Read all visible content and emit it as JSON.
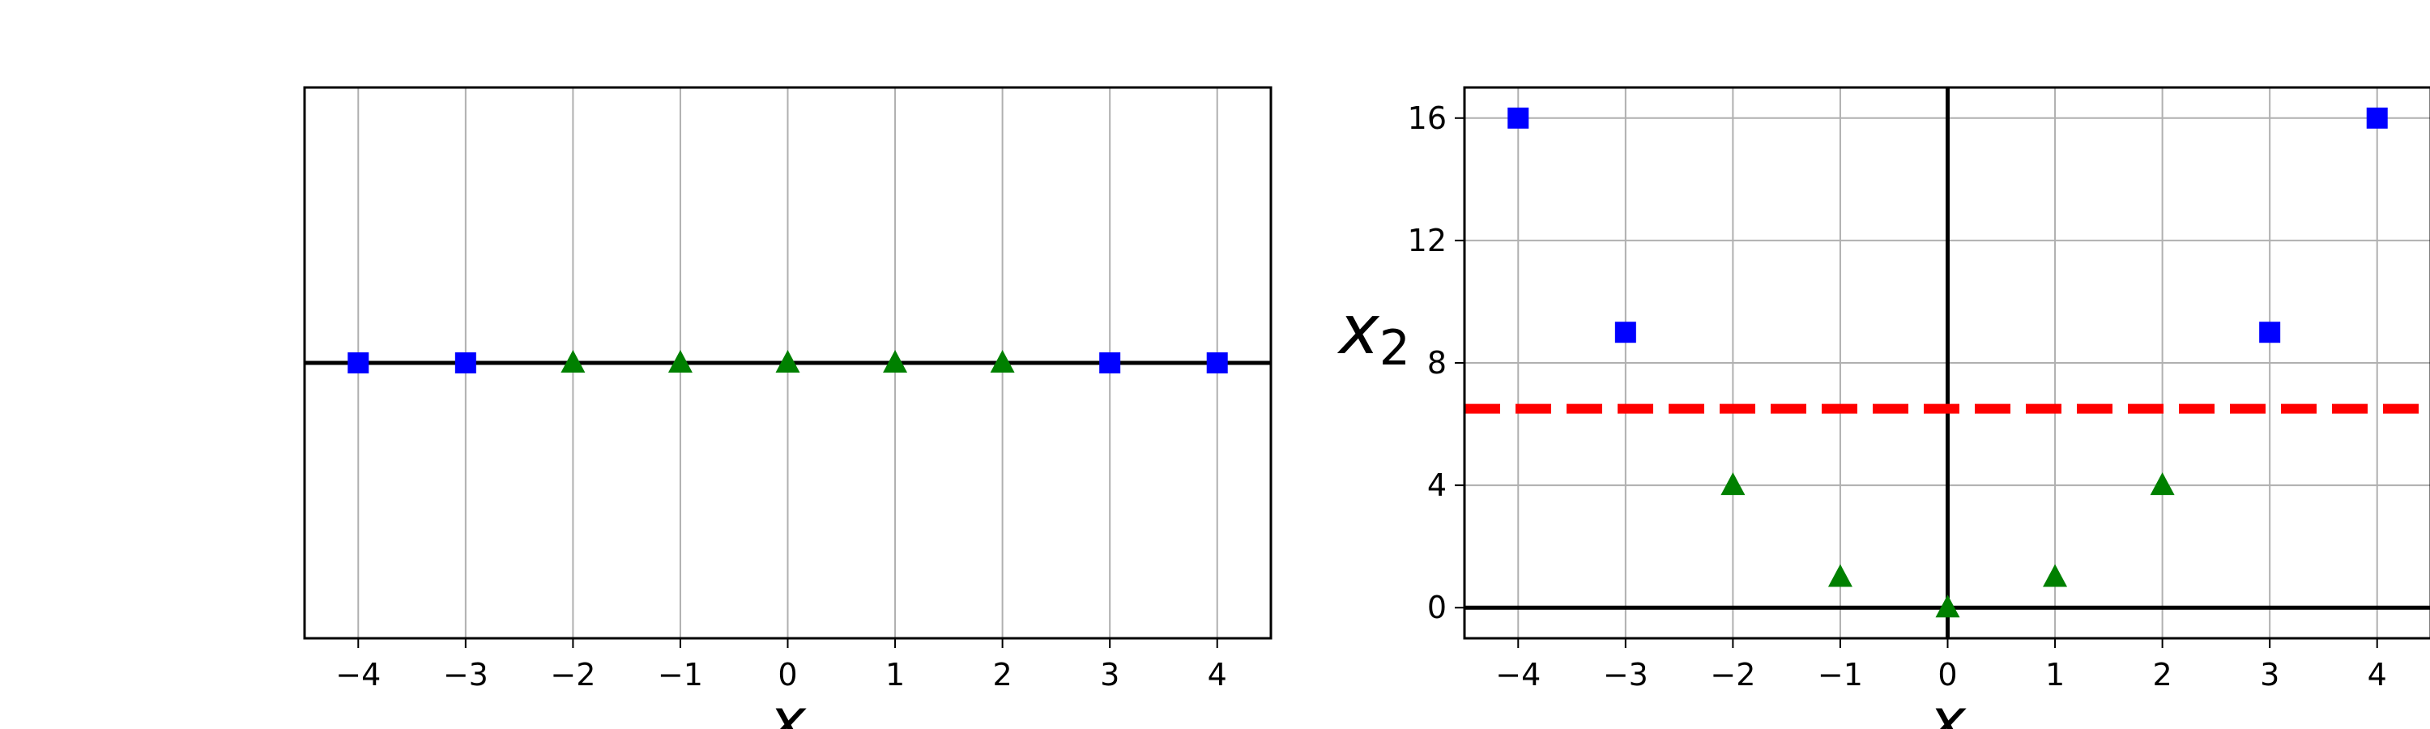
{
  "chart_data": [
    {
      "type": "scatter",
      "panel": "left",
      "xlabel": "x",
      "ylabel": "",
      "xlim": [
        -4.5,
        4.5
      ],
      "ylim": [
        -0.2,
        0.2
      ],
      "x_ticks": [
        "−4",
        "−3",
        "−2",
        "−1",
        "0",
        "1",
        "2",
        "3",
        "4"
      ],
      "y_ticks": [],
      "grid": true,
      "series": [
        {
          "marker": "square",
          "color": "#0000ff",
          "x": [
            -4,
            -3,
            3,
            4
          ],
          "y": [
            0,
            0,
            0,
            0
          ]
        },
        {
          "marker": "triangle",
          "color": "#008000",
          "x": [
            -2,
            -1,
            0,
            1,
            2
          ],
          "y": [
            0,
            0,
            0,
            0,
            0
          ]
        }
      ],
      "reference_lines": [
        {
          "orientation": "horizontal",
          "at": 0,
          "color": "#000000",
          "style": "solid"
        }
      ]
    },
    {
      "type": "scatter",
      "panel": "right",
      "xlabel": "x",
      "ylabel": "x2",
      "xlim": [
        -4.5,
        4.5
      ],
      "ylim": [
        -1,
        17
      ],
      "x_ticks": [
        "−4",
        "−3",
        "−2",
        "−1",
        "0",
        "1",
        "2",
        "3",
        "4"
      ],
      "y_ticks": [
        "0",
        "4",
        "8",
        "12",
        "16"
      ],
      "grid": true,
      "series": [
        {
          "marker": "square",
          "color": "#0000ff",
          "x": [
            -4,
            -3,
            3,
            4
          ],
          "y": [
            16,
            9,
            9,
            16
          ]
        },
        {
          "marker": "triangle",
          "color": "#008000",
          "x": [
            -2,
            -1,
            0,
            1,
            2
          ],
          "y": [
            4,
            1,
            0,
            1,
            4
          ]
        }
      ],
      "reference_lines": [
        {
          "orientation": "horizontal",
          "at": 0,
          "color": "#000000",
          "style": "solid"
        },
        {
          "orientation": "vertical",
          "at": 0,
          "color": "#000000",
          "style": "solid"
        },
        {
          "orientation": "horizontal",
          "at": 6.5,
          "color": "#ff0000",
          "style": "dashed"
        }
      ]
    }
  ]
}
